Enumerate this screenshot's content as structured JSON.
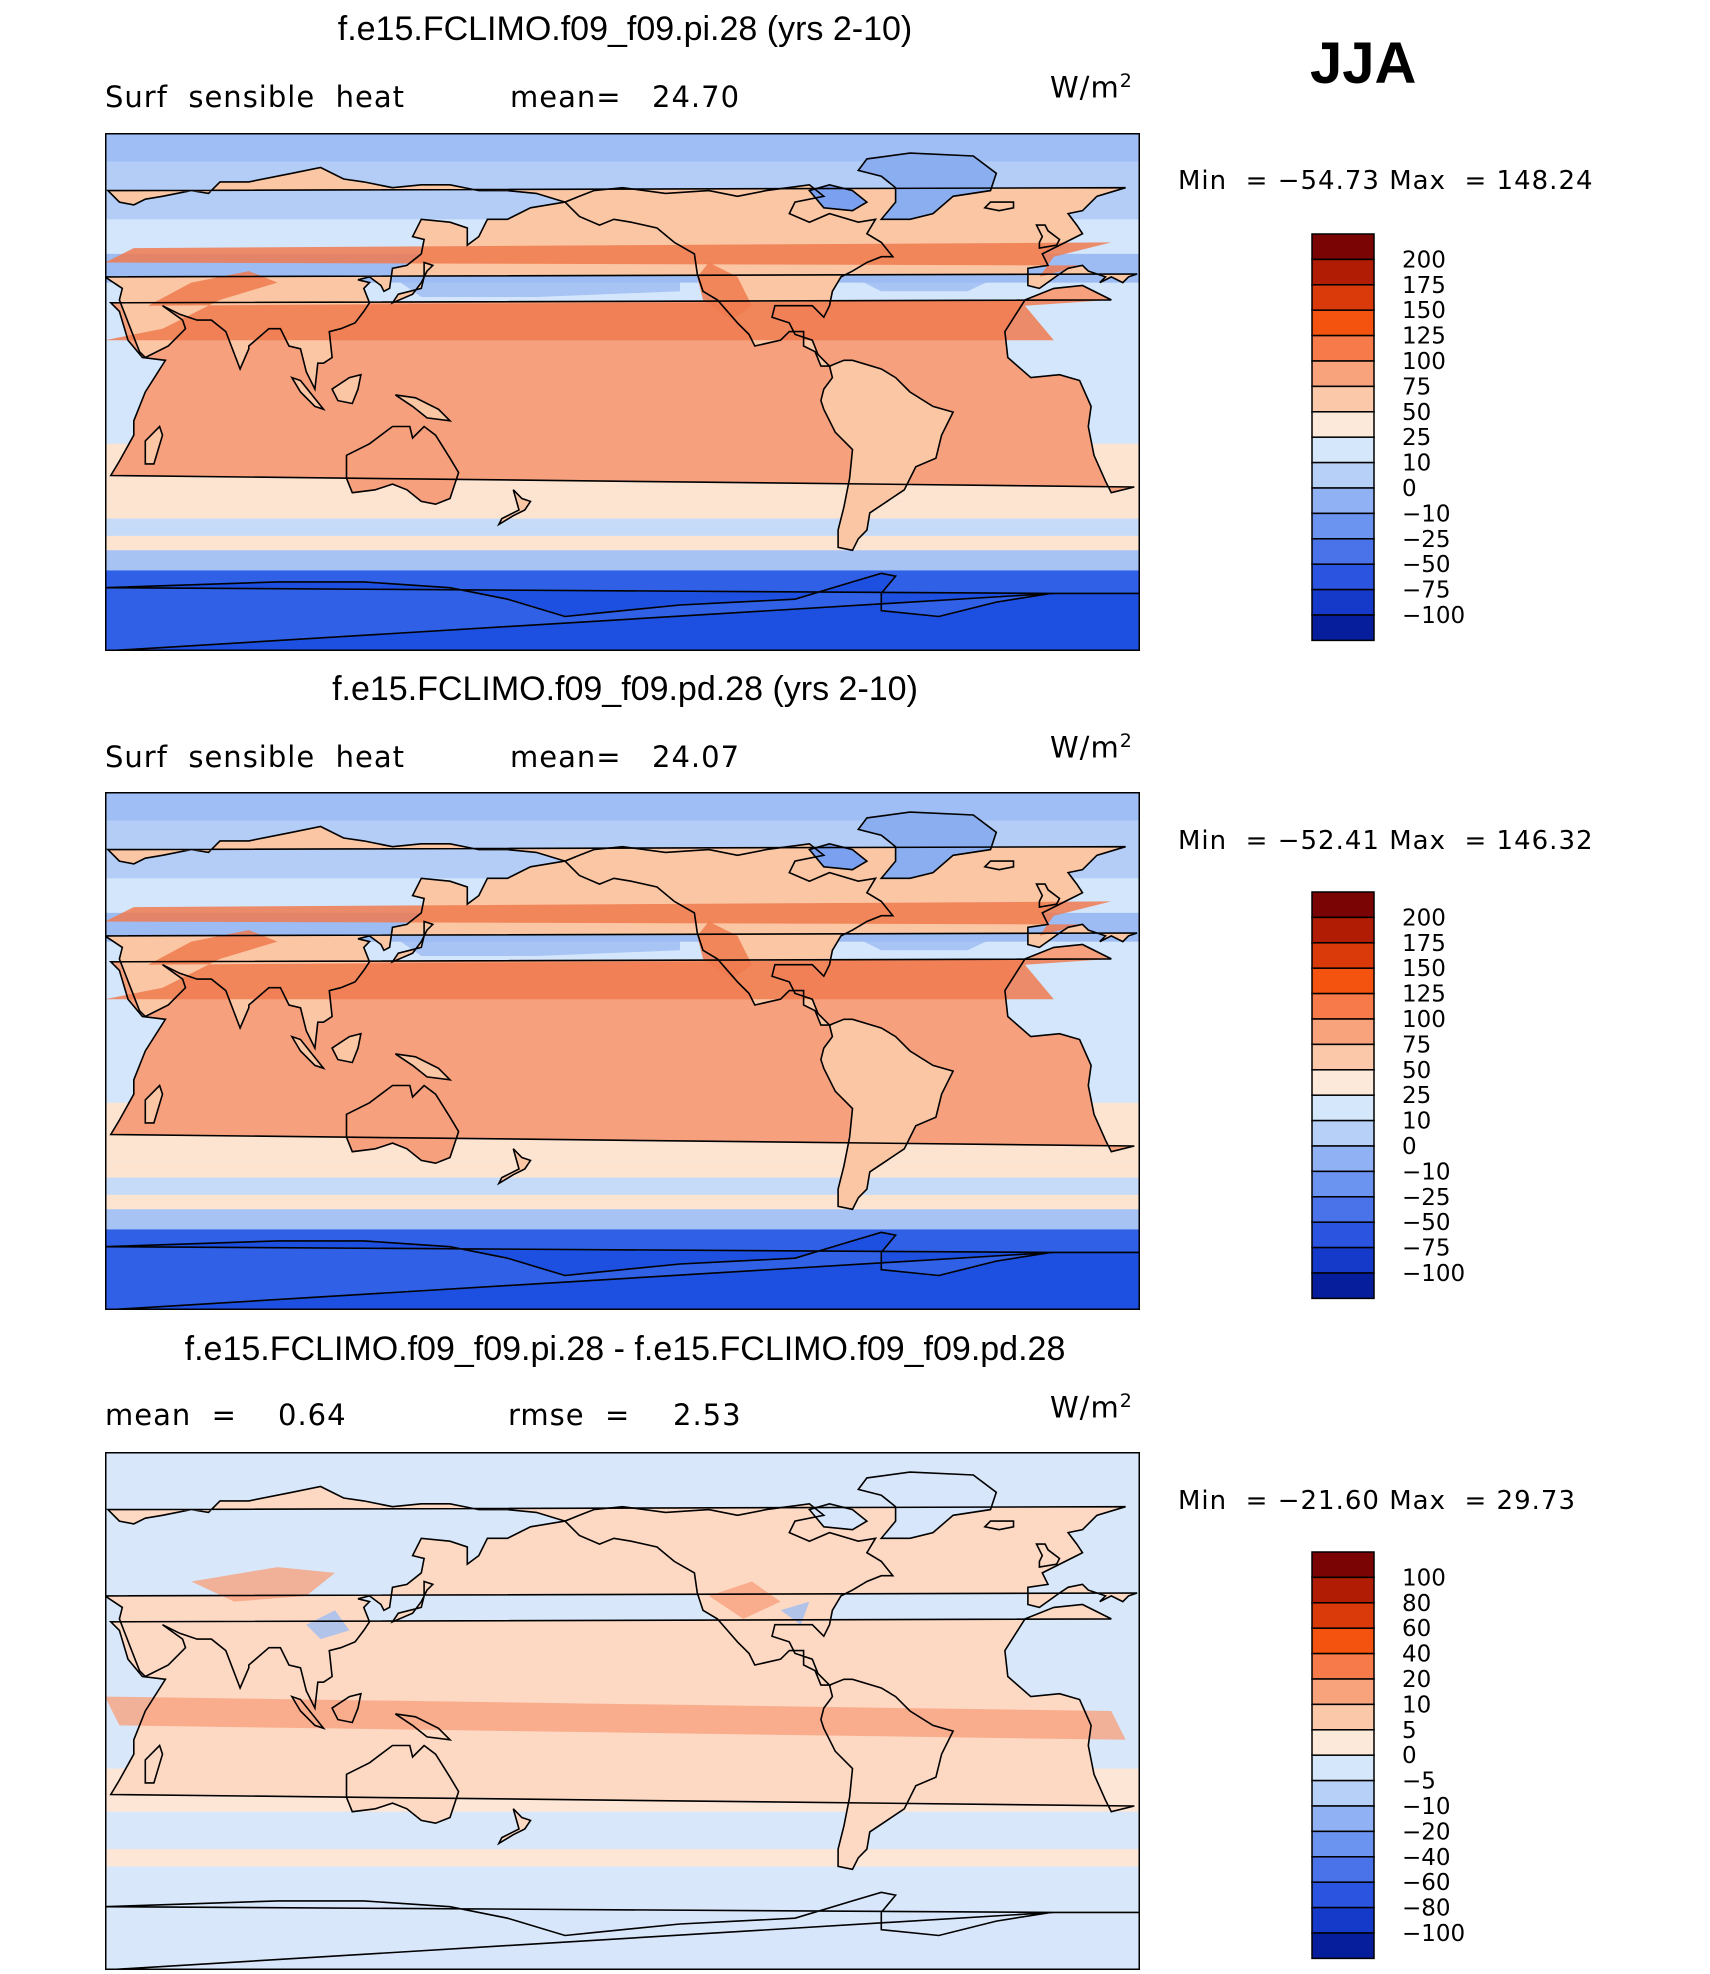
{
  "season": "JJA",
  "panels": [
    {
      "title": "f.e15.FCLIMO.f09_f09.pi.28 (yrs 2-10)",
      "left_label": "Surf  sensible  heat",
      "mid_label": "mean=",
      "mid_value": "24.70",
      "units": "W/m",
      "units_exp": "2",
      "min_label": "Min  =",
      "min_value": "−54.73",
      "max_label": "Max  =",
      "max_value": "148.24",
      "levels": [
        "200",
        "175",
        "150",
        "125",
        "100",
        "75",
        "50",
        "25",
        "10",
        "0",
        "−10",
        "−25",
        "−50",
        "−75",
        "−100"
      ]
    },
    {
      "title": "f.e15.FCLIMO.f09_f09.pd.28 (yrs 2-10)",
      "left_label": "Surf  sensible  heat",
      "mid_label": "mean=",
      "mid_value": "24.07",
      "units": "W/m",
      "units_exp": "2",
      "min_label": "Min  =",
      "min_value": "−52.41",
      "max_label": "Max  =",
      "max_value": "146.32",
      "levels": [
        "200",
        "175",
        "150",
        "125",
        "100",
        "75",
        "50",
        "25",
        "10",
        "0",
        "−10",
        "−25",
        "−50",
        "−75",
        "−100"
      ]
    },
    {
      "title": "f.e15.FCLIMO.f09_f09.pi.28 - f.e15.FCLIMO.f09_f09.pd.28",
      "left_label": "mean  =",
      "left_value": "0.64",
      "mid_label": "rmse  =",
      "mid_value": "2.53",
      "units": "W/m",
      "units_exp": "2",
      "min_label": "Min  =",
      "min_value": "−21.60",
      "max_label": "Max  =",
      "max_value": "29.73",
      "levels": [
        "100",
        "80",
        "60",
        "40",
        "20",
        "10",
        "5",
        "0",
        "−5",
        "−10",
        "−20",
        "−40",
        "−60",
        "−80",
        "−100"
      ]
    }
  ],
  "chart_data": {
    "type": "heatmap",
    "variable": "Surf sensible heat",
    "units": "W/m2",
    "colormap": [
      "#7a0403",
      "#b11d04",
      "#da3a0a",
      "#f4520f",
      "#f77a4b",
      "#f9a37c",
      "#fbc9aa",
      "#fde9d9",
      "#d8e8f8",
      "#b6cff5",
      "#93b3f0",
      "#6e92ec",
      "#4a6ee6",
      "#2c4fe0",
      "#1535c0",
      "#0a1f99",
      "#000f70"
    ],
    "colormap_main": [
      "#7a0403",
      "#b11d04",
      "#da3a0a",
      "#f4520f",
      "#f77a4b",
      "#f9a37c",
      "#fbc9aa",
      "#fde9d9",
      "#d5e7fb",
      "#b7d0f7",
      "#90b2f4",
      "#6b93f0",
      "#4a73ea",
      "#2b55e0",
      "#1539c8",
      "#061d9c"
    ],
    "colormap_diff": [
      "#7a0403",
      "#b11d04",
      "#da3a0a",
      "#f4520f",
      "#f77a4b",
      "#f9a37c",
      "#fbc9aa",
      "#fde9d9",
      "#d5e7fb",
      "#b7d0f7",
      "#90b2f4",
      "#6b93f0",
      "#4a73ea",
      "#2b55e0",
      "#1539c8",
      "#061d9c"
    ]
  }
}
